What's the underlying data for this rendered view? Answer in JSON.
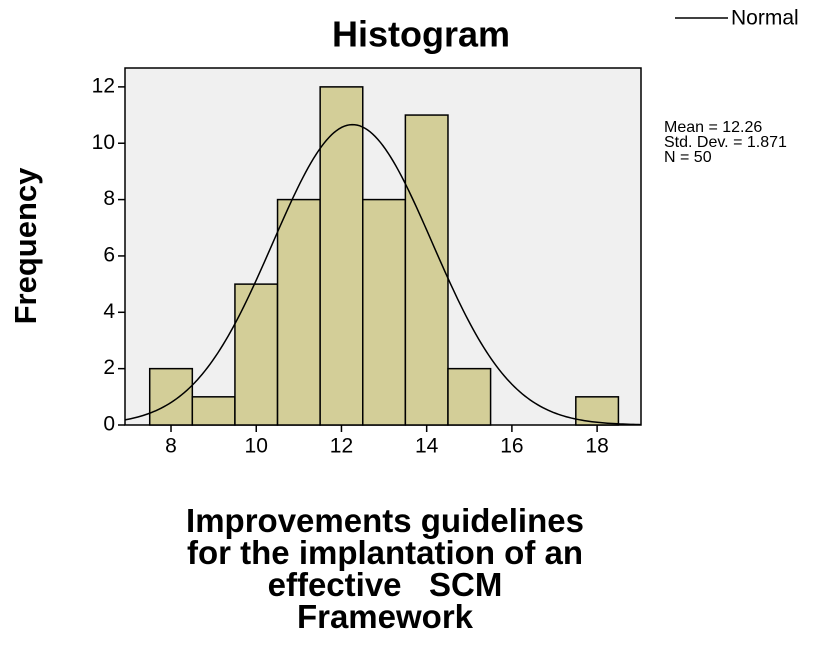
{
  "chart_data": {
    "type": "histogram",
    "title": "Histogram",
    "xlabel": [
      "Improvements guidelines",
      "for the implantation of an",
      "effective   SCM",
      "Framework"
    ],
    "ylabel": "Frequency",
    "bins": [
      7.5,
      8.5,
      9.5,
      10.5,
      11.5,
      12.5,
      13.5,
      14.5,
      15.5,
      16.5,
      17.5,
      18.5
    ],
    "values": [
      2,
      1,
      5,
      8,
      12,
      8,
      11,
      2,
      0,
      0,
      1
    ],
    "color": "#d3ce98",
    "xlim": [
      6.92,
      19.03
    ],
    "xticks": [
      8,
      10,
      12,
      14,
      16,
      18
    ],
    "ylim": [
      0,
      12.67
    ],
    "yticks": [
      0,
      2,
      4,
      6,
      8,
      10,
      12
    ],
    "normal_curve": {
      "name": "Normal",
      "mean": 12.26,
      "std": 1.871,
      "n": 50,
      "color": "#000000",
      "labels": [
        "Mean = 12.26",
        "Std. Dev. = 1.871",
        "N = 50"
      ]
    },
    "legend": "top-right"
  }
}
